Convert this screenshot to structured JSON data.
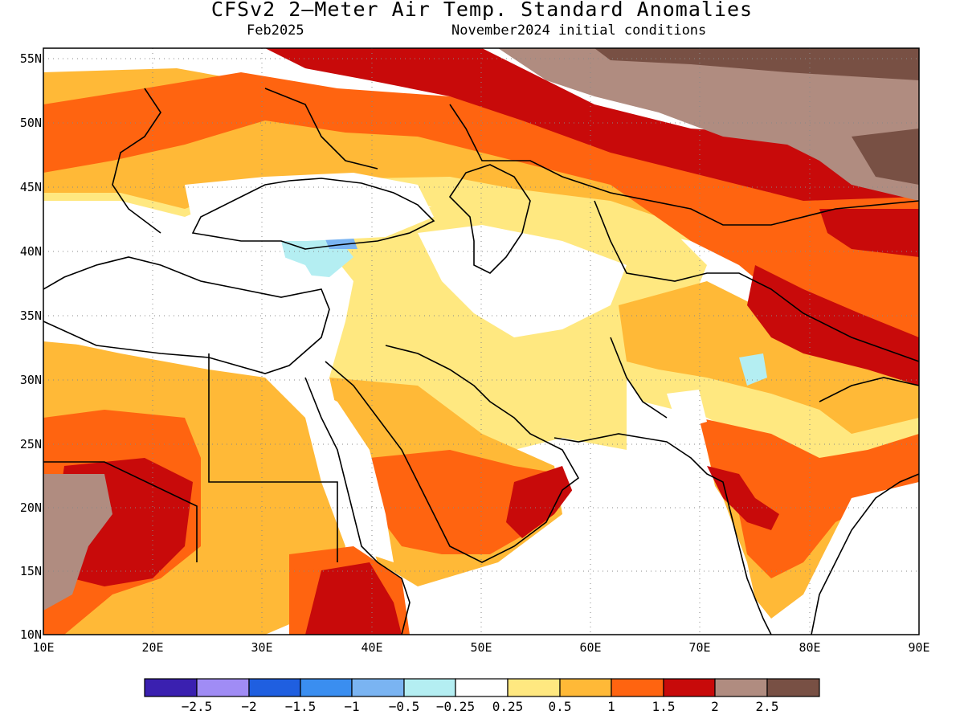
{
  "title": "CFSv2 2–Meter Air Temp. Standard Anomalies",
  "valid_month": "Feb2025",
  "init_conditions": "November2024 initial conditions",
  "map": {
    "lon_range": [
      10,
      90
    ],
    "lat_range": [
      10,
      56
    ],
    "lat_labels": [
      "55N",
      "50N",
      "45N",
      "40N",
      "35N",
      "30N",
      "25N",
      "20N",
      "15N",
      "10N"
    ],
    "lon_labels": [
      "10E",
      "20E",
      "30E",
      "40E",
      "50E",
      "60E",
      "70E",
      "80E",
      "90E"
    ],
    "grid": "dotted"
  },
  "colorbar": {
    "colors": [
      "#3a20b0",
      "#a08cf5",
      "#1f5fe0",
      "#3a8ef0",
      "#7ab4f2",
      "#b4eef2",
      "#ffffff",
      "#ffe880",
      "#ffb937",
      "#ff6410",
      "#c80a0a",
      "#b08c80",
      "#785044"
    ],
    "labels": [
      "−2.5",
      "−2",
      "−1.5",
      "−1",
      "−0.5",
      "−0.25",
      "0.25",
      "0.5",
      "1",
      "1.5",
      "2",
      "2.5"
    ]
  }
}
